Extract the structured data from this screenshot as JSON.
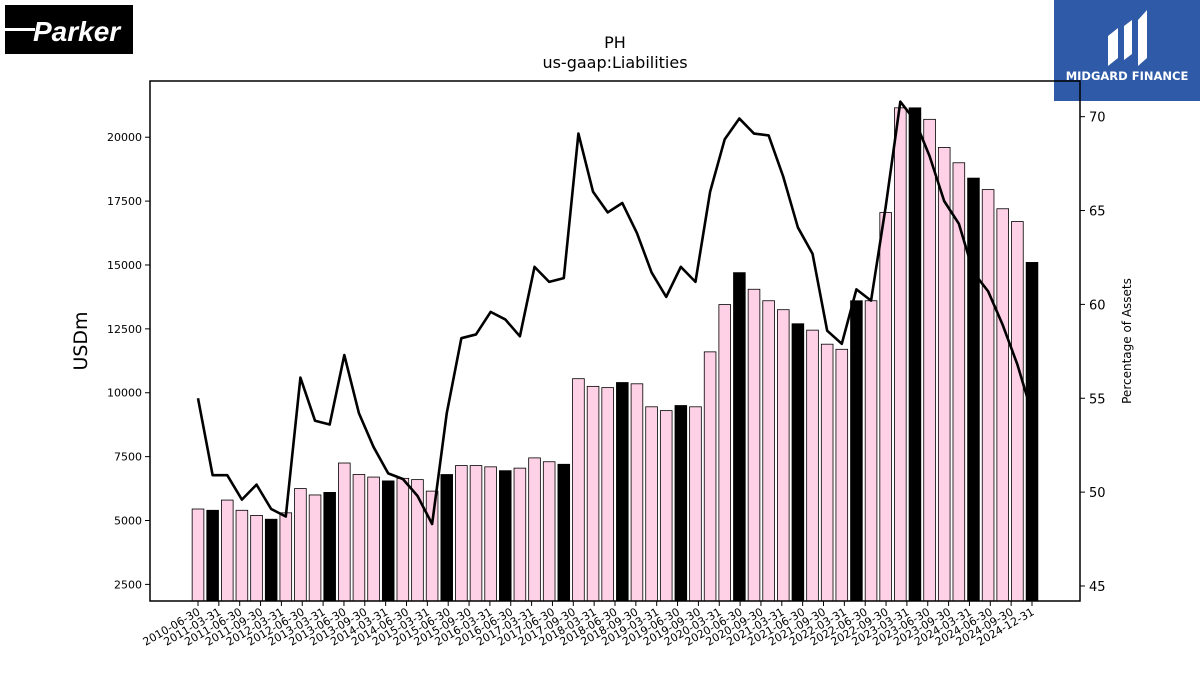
{
  "logos": {
    "left": "Parker",
    "right": "MIDGARD FINANCE"
  },
  "colors": {
    "bar_face": "#ffd1e6",
    "bar_highlight": "#000000",
    "bar_edge": "#000000",
    "line": "#000000",
    "brand_right": "#2f5aa8"
  },
  "chart_data": {
    "type": "bar",
    "title": "PH",
    "subtitle": "us-gaap:Liabilities",
    "ylabel": "USDm",
    "y2label": "Percentage of Assets",
    "ylim": [
      1850,
      22200
    ],
    "y2lim": [
      44.2,
      71.9
    ],
    "yticks": [
      2500,
      5000,
      7500,
      10000,
      12500,
      15000,
      17500,
      20000
    ],
    "y2ticks": [
      45,
      50,
      55,
      60,
      65,
      70
    ],
    "grid": false,
    "categories": [
      "2010-06-30",
      "2010-09-30",
      "2010-12-31",
      "2011-03-31",
      "2011-06-30",
      "2011-09-30",
      "2011-12-31",
      "2012-03-31",
      "2012-06-30",
      "2012-09-30",
      "2012-12-31",
      "2013-03-31",
      "2013-06-30",
      "2013-09-30",
      "2013-12-31",
      "2014-03-31",
      "2014-06-30",
      "2014-09-30",
      "2014-12-31",
      "2015-03-31",
      "2015-06-30",
      "2015-09-30",
      "2015-12-31",
      "2016-03-31",
      "2016-06-30",
      "2016-09-30",
      "2016-12-31",
      "2017-03-31",
      "2017-06-30",
      "2017-09-30",
      "2017-12-31",
      "2018-03-31",
      "2018-06-30",
      "2018-09-30",
      "2018-12-31",
      "2019-03-31",
      "2019-06-30",
      "2019-09-30",
      "2019-12-31",
      "2020-03-31",
      "2020-06-30",
      "2020-09-30",
      "2020-12-31",
      "2021-03-31",
      "2021-06-30",
      "2021-09-30",
      "2021-12-31",
      "2022-03-31",
      "2022-06-30",
      "2022-09-30",
      "2022-12-31",
      "2023-03-31",
      "2023-06-30",
      "2023-09-30",
      "2023-12-31",
      "2024-03-31",
      "2024-06-30",
      "2024-09-30"
    ],
    "tick_labels": [
      "2010-06-30",
      "2011-03-31",
      "2011-06-30",
      "2011-09-30",
      "2012-03-31",
      "2012-06-30",
      "2013-03-31",
      "2013-06-30",
      "2013-09-30",
      "2014-03-31",
      "2014-06-30",
      "2015-03-31",
      "2015-06-30",
      "2015-09-30",
      "2016-03-31",
      "2016-06-30",
      "2017-03-31",
      "2017-06-30",
      "2017-09-30",
      "2018-03-31",
      "2018-06-30",
      "2018-09-30",
      "2019-03-31",
      "2019-06-30",
      "2019-09-30",
      "2020-03-31",
      "2020-06-30",
      "2020-09-30",
      "2021-03-31",
      "2021-06-30",
      "2021-09-30",
      "2022-03-31",
      "2022-06-30",
      "2022-09-30",
      "2023-03-31",
      "2023-06-30",
      "2023-09-30",
      "2024-03-31",
      "2024-06-30",
      "2024-09-30",
      "2024-12-31"
    ],
    "series": [
      {
        "name": "Liabilities (USDm)",
        "kind": "bar",
        "axis": "left",
        "values": [
          5450,
          5400,
          5800,
          5400,
          5200,
          5050,
          5300,
          6250,
          6000,
          6100,
          7250,
          6800,
          6700,
          6550,
          6650,
          6600,
          6150,
          6800,
          7150,
          7150,
          7100,
          6950,
          7050,
          7450,
          7300,
          7200,
          10550,
          10250,
          10200,
          10400,
          10350,
          9450,
          9300,
          9500,
          9450,
          11600,
          13450,
          14700,
          14050,
          13600,
          13250,
          12700,
          12450,
          11900,
          11700,
          13600,
          13600,
          17050,
          21150,
          21150,
          20700,
          19600,
          19000,
          18400,
          17950,
          17200,
          16700,
          15100
        ],
        "highlight": [
          false,
          true,
          false,
          false,
          false,
          true,
          false,
          false,
          false,
          true,
          false,
          false,
          false,
          true,
          false,
          false,
          false,
          true,
          false,
          false,
          false,
          true,
          false,
          false,
          false,
          true,
          false,
          false,
          false,
          true,
          false,
          false,
          false,
          true,
          false,
          false,
          false,
          true,
          false,
          false,
          false,
          true,
          false,
          false,
          false,
          true,
          false,
          false,
          false,
          true,
          false,
          false,
          false,
          true,
          false,
          false,
          false,
          true
        ]
      },
      {
        "name": "Percentage of Assets",
        "kind": "line",
        "axis": "right",
        "values": [
          55.0,
          50.9,
          50.9,
          49.6,
          50.4,
          49.1,
          48.7,
          56.1,
          53.8,
          53.6,
          57.3,
          54.2,
          52.4,
          51.0,
          50.7,
          49.8,
          48.3,
          54.2,
          58.2,
          58.4,
          59.6,
          59.2,
          58.3,
          62.0,
          61.2,
          61.4,
          69.1,
          66.0,
          64.9,
          65.4,
          63.8,
          61.7,
          60.4,
          62.0,
          61.2,
          66.0,
          68.8,
          69.9,
          69.1,
          69.0,
          66.8,
          64.1,
          62.7,
          58.6,
          57.9,
          60.8,
          60.2,
          65.2,
          70.8,
          69.8,
          67.9,
          65.5,
          64.3,
          61.7,
          60.7,
          58.9,
          56.8,
          54.2
        ]
      }
    ]
  }
}
